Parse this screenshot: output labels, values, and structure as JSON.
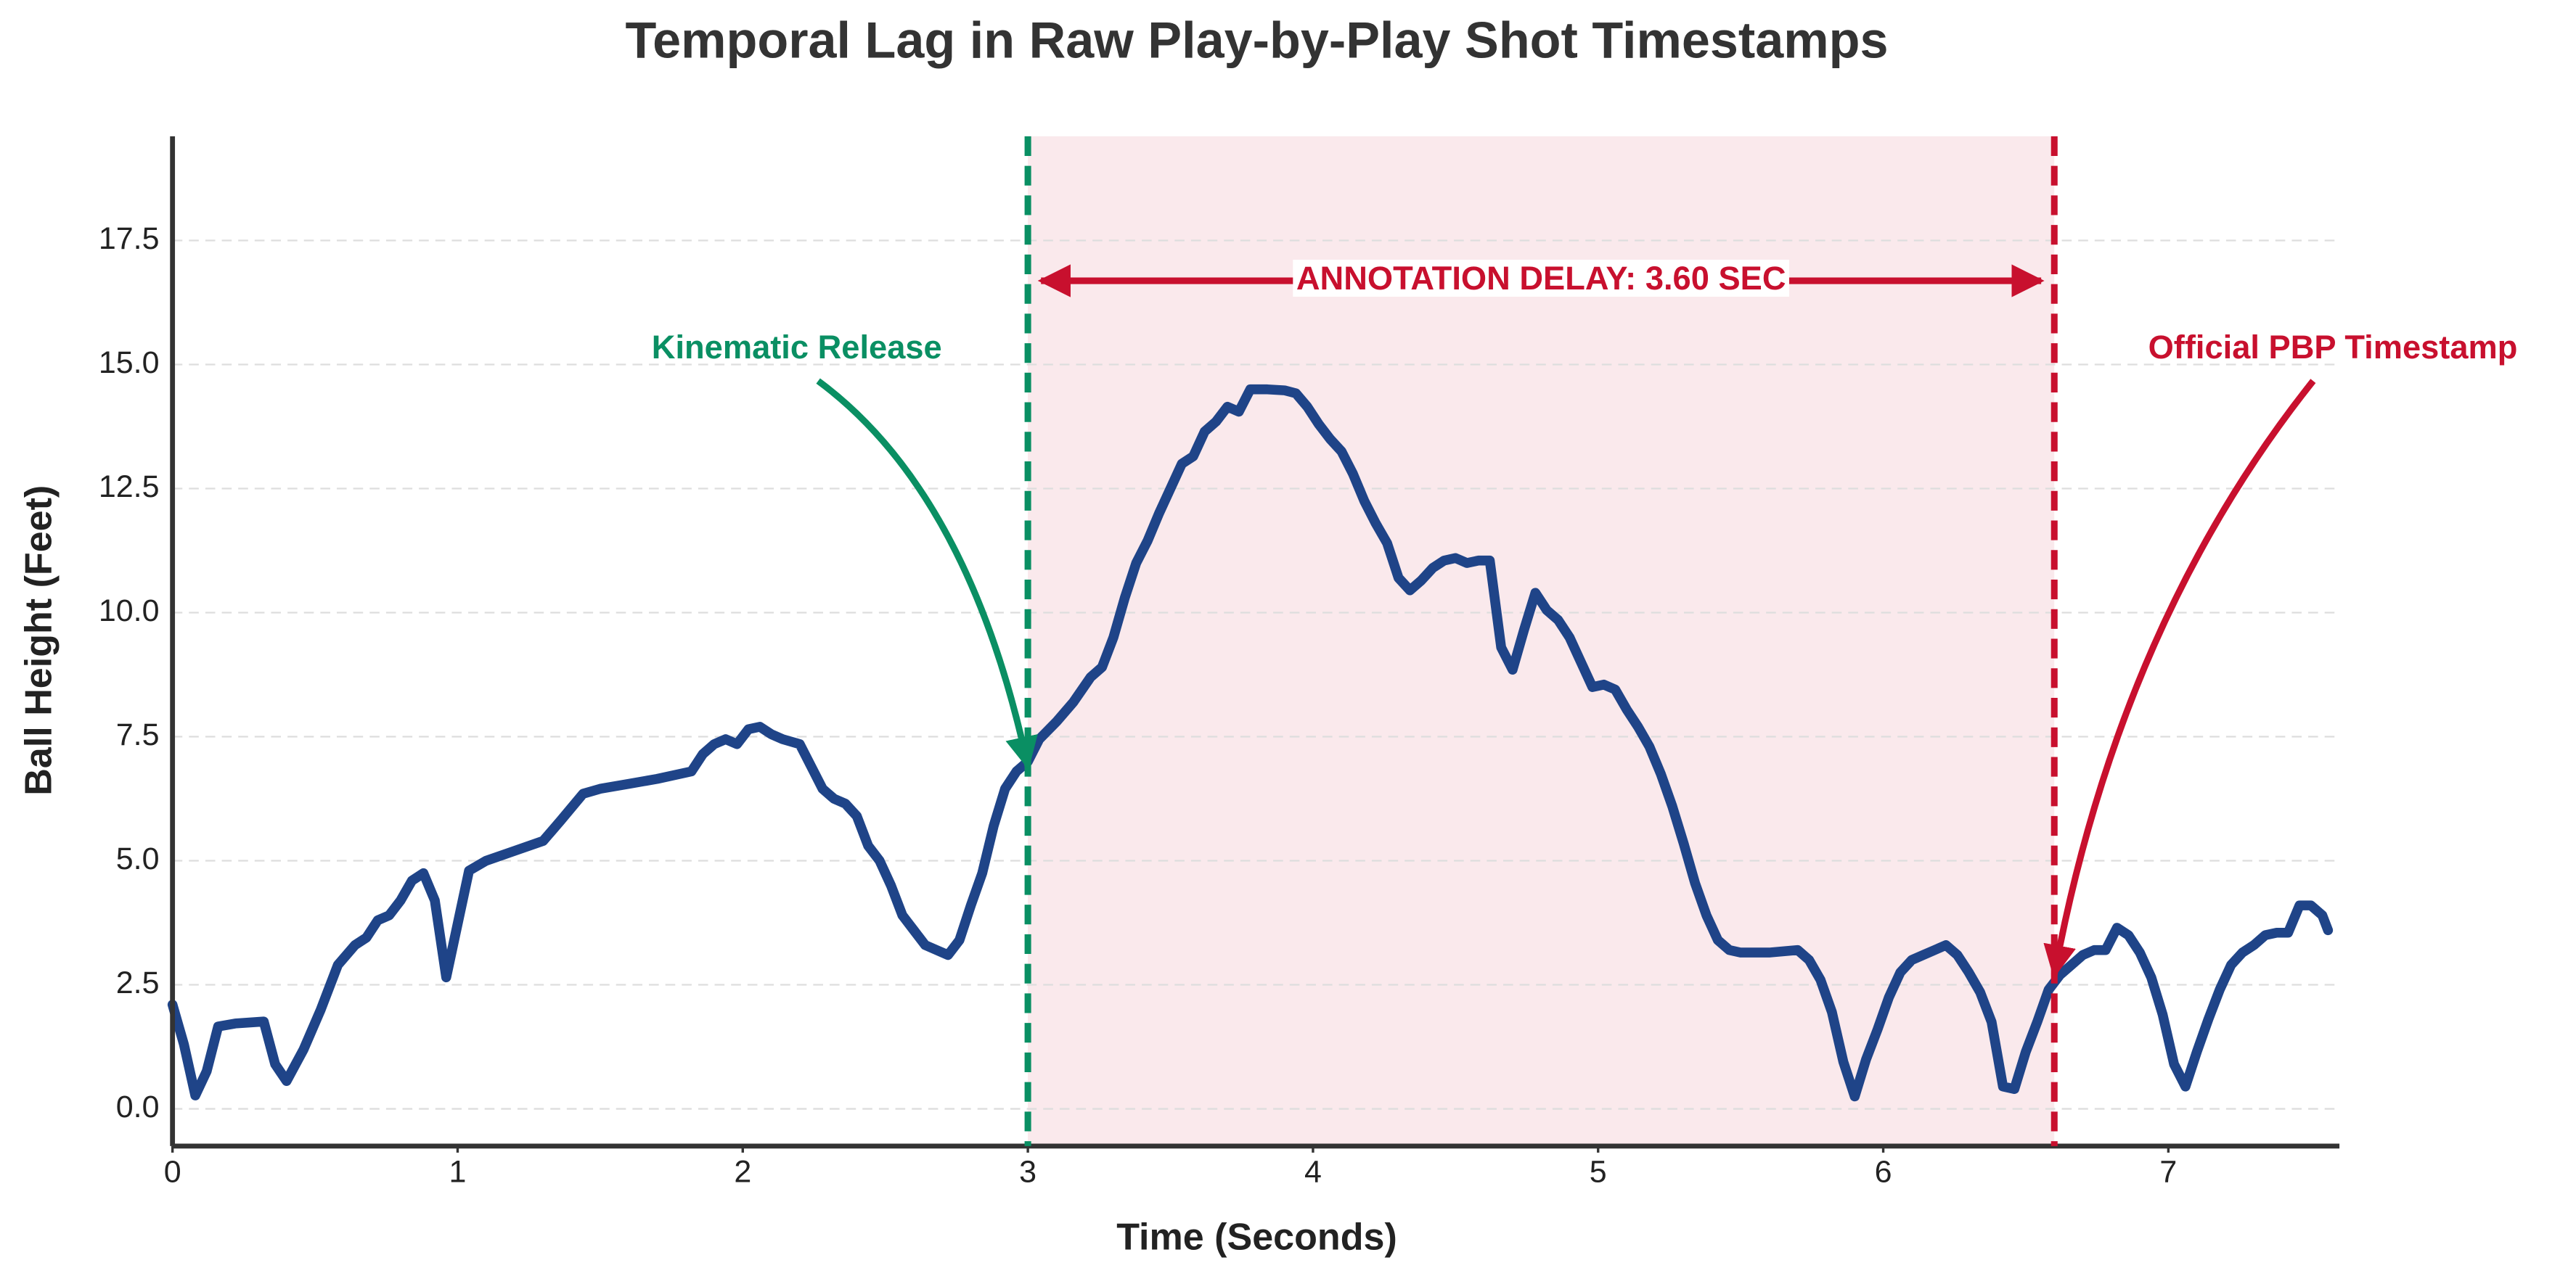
{
  "chart_data": {
    "type": "line",
    "title": "Temporal Lag in Raw Play-by-Play Shot Timestamps",
    "x_label": "Time (Seconds)",
    "y_label": "Ball Height (Feet)",
    "xlim": [
      0,
      7.6
    ],
    "ylim": [
      -0.75,
      19.6
    ],
    "xticks": [
      0,
      1,
      2,
      3,
      4,
      5,
      6,
      7
    ],
    "yticks": [
      {
        "value": 0,
        "label": "0.0"
      },
      2.5,
      {
        "value": 5,
        "label": "5.0"
      },
      7.5,
      {
        "value": 10,
        "label": "10.0"
      },
      12.5,
      {
        "value": 15,
        "label": "15.0"
      },
      17.5
    ],
    "grid": true,
    "x": [
      0,
      0.04,
      0.08,
      0.12,
      0.16,
      0.22,
      0.32,
      0.36,
      0.4,
      0.46,
      0.52,
      0.58,
      0.64,
      0.68,
      0.72,
      0.76,
      0.8,
      0.84,
      0.88,
      0.92,
      0.96,
      1.04,
      1.1,
      1.2,
      1.3,
      1.36,
      1.44,
      1.5,
      1.6,
      1.7,
      1.82,
      1.86,
      1.9,
      1.94,
      1.98,
      2.02,
      2.06,
      2.1,
      2.14,
      2.2,
      2.24,
      2.28,
      2.32,
      2.36,
      2.4,
      2.44,
      2.48,
      2.52,
      2.56,
      2.6,
      2.64,
      2.68,
      2.72,
      2.76,
      2.8,
      2.84,
      2.88,
      2.92,
      2.96,
      3.0,
      3.04,
      3.1,
      3.16,
      3.22,
      3.26,
      3.3,
      3.34,
      3.38,
      3.42,
      3.46,
      3.5,
      3.54,
      3.58,
      3.62,
      3.66,
      3.7,
      3.74,
      3.78,
      3.84,
      3.9,
      3.94,
      3.98,
      4.02,
      4.06,
      4.1,
      4.14,
      4.18,
      4.22,
      4.26,
      4.3,
      4.34,
      4.38,
      4.42,
      4.46,
      4.5,
      4.54,
      4.58,
      4.62,
      4.66,
      4.7,
      4.74,
      4.78,
      4.82,
      4.86,
      4.9,
      4.94,
      4.98,
      5.02,
      5.06,
      5.1,
      5.14,
      5.18,
      5.22,
      5.26,
      5.3,
      5.34,
      5.38,
      5.42,
      5.46,
      5.5,
      5.6,
      5.7,
      5.74,
      5.78,
      5.82,
      5.86,
      5.9,
      5.94,
      5.98,
      6.02,
      6.06,
      6.1,
      6.14,
      6.18,
      6.22,
      6.26,
      6.3,
      6.34,
      6.38,
      6.42,
      6.46,
      6.5,
      6.54,
      6.58,
      6.62,
      6.66,
      6.7,
      6.74,
      6.78,
      6.82,
      6.86,
      6.9,
      6.94,
      6.98,
      7.02,
      7.06,
      7.1,
      7.14,
      7.18,
      7.22,
      7.26,
      7.3,
      7.34,
      7.38,
      7.42,
      7.46,
      7.5,
      7.54,
      7.56
    ],
    "series": [
      {
        "color": "#1f4488",
        "values": [
          2.1,
          1.3,
          0.27,
          0.76,
          1.66,
          1.72,
          1.76,
          0.9,
          0.56,
          1.2,
          2.0,
          2.9,
          3.3,
          3.45,
          3.8,
          3.9,
          4.2,
          4.6,
          4.75,
          4.2,
          2.65,
          4.8,
          5.0,
          5.2,
          5.4,
          5.8,
          6.35,
          6.45,
          6.55,
          6.65,
          6.8,
          7.15,
          7.35,
          7.45,
          7.35,
          7.65,
          7.7,
          7.55,
          7.45,
          7.35,
          6.9,
          6.45,
          6.25,
          6.15,
          5.9,
          5.3,
          5.0,
          4.5,
          3.9,
          3.6,
          3.3,
          3.2,
          3.1,
          3.4,
          4.1,
          4.75,
          5.7,
          6.45,
          6.8,
          7.0,
          7.45,
          7.8,
          8.2,
          8.7,
          8.9,
          9.5,
          10.3,
          11.0,
          11.45,
          12.0,
          12.5,
          13.0,
          13.15,
          13.65,
          13.85,
          14.15,
          14.05,
          14.5,
          14.5,
          14.48,
          14.42,
          14.15,
          13.8,
          13.5,
          13.25,
          12.8,
          12.25,
          11.8,
          11.4,
          10.7,
          10.45,
          10.65,
          10.9,
          11.05,
          11.1,
          11.0,
          11.05,
          11.05,
          9.3,
          8.85,
          9.65,
          10.4,
          10.05,
          9.85,
          9.5,
          9.0,
          8.5,
          8.55,
          8.45,
          8.05,
          7.7,
          7.3,
          6.75,
          6.1,
          5.35,
          4.55,
          3.9,
          3.4,
          3.2,
          3.15,
          3.15,
          3.2,
          3.0,
          2.6,
          1.95,
          0.95,
          0.25,
          1.0,
          1.6,
          2.25,
          2.75,
          3.0,
          3.1,
          3.2,
          3.3,
          3.1,
          2.75,
          2.35,
          1.75,
          0.45,
          0.4,
          1.15,
          1.75,
          2.4,
          2.7,
          2.9,
          3.1,
          3.2,
          3.2,
          3.65,
          3.5,
          3.15,
          2.65,
          1.9,
          0.9,
          0.45,
          1.15,
          1.8,
          2.4,
          2.9,
          3.15,
          3.3,
          3.5,
          3.55,
          3.55,
          4.1,
          4.1,
          3.9,
          3.6
        ]
      }
    ],
    "vlines": [
      {
        "x": 3.0,
        "color": "#0a8f63"
      },
      {
        "x": 6.6,
        "color": "#c8102e"
      }
    ],
    "span_color": "#c8102e",
    "delay_label": "ANNOTATION DELAY: 3.60 SEC",
    "annotations": [
      {
        "text": "Kinematic Release",
        "x": 3.0,
        "y": 6.9,
        "color": "#0a8f63"
      },
      {
        "text": "Official PBP Timestamp",
        "x": 6.6,
        "y": 2.7,
        "color": "#c8102e"
      }
    ]
  }
}
